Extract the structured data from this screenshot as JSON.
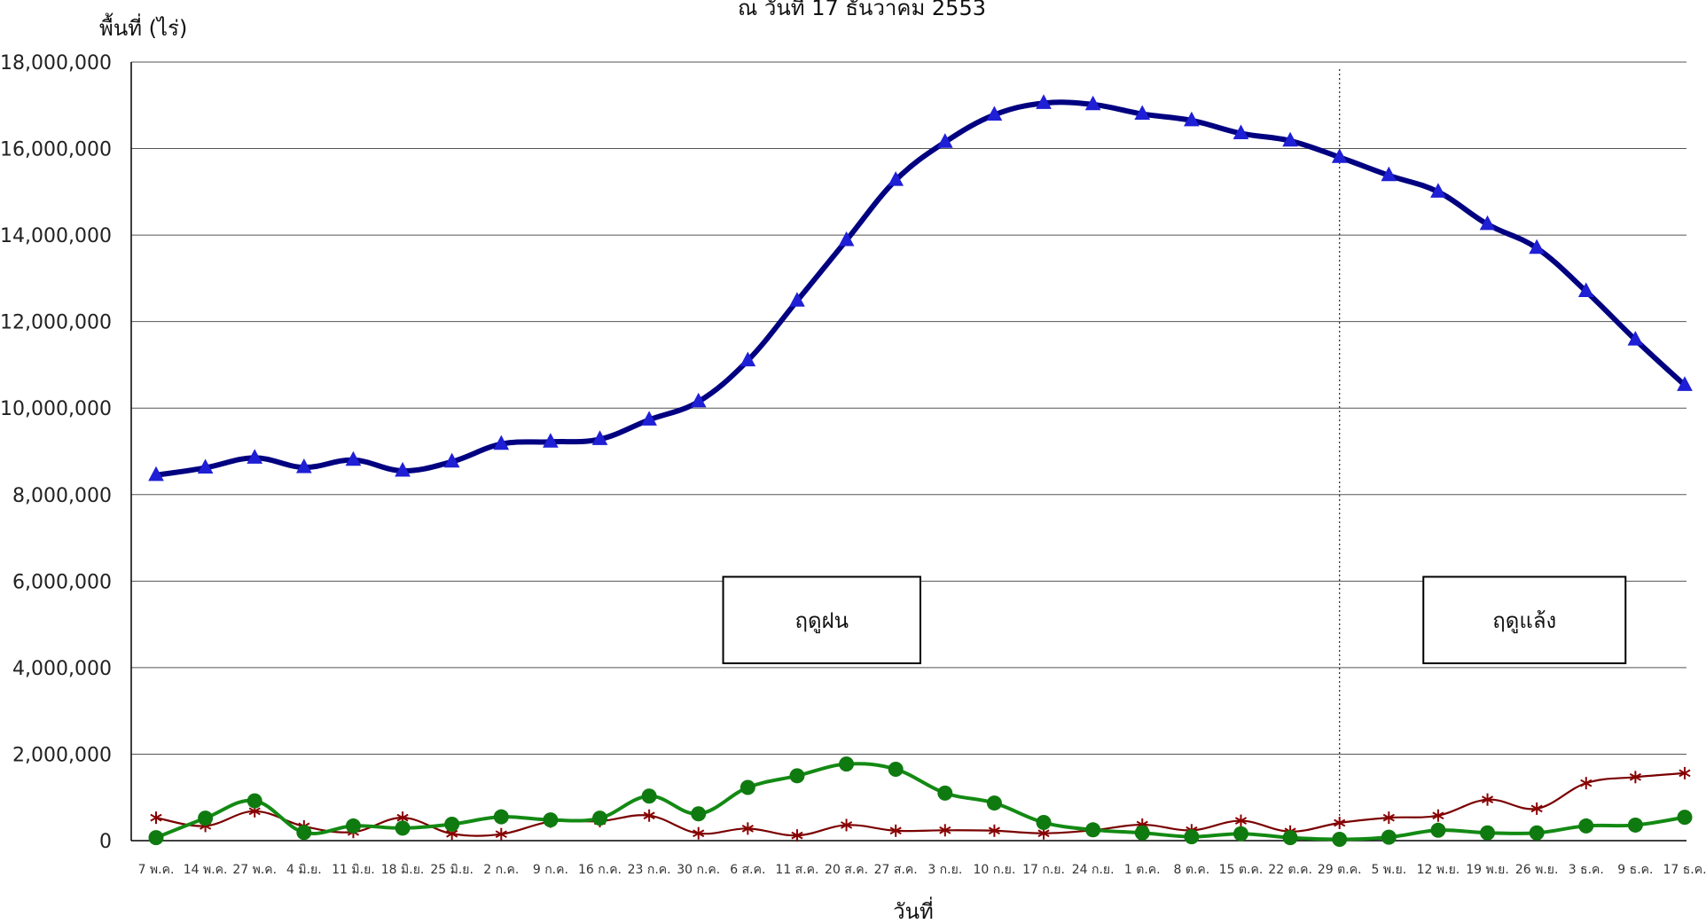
{
  "chart_data": {
    "type": "line",
    "title": "ณ วันที่ 17 ธันวาคม 2553",
    "ylabel": "พื้นที่ (ไร่)",
    "xlabel": "วันที่",
    "ylim": [
      0,
      18000000
    ],
    "yticks": [
      0,
      2000000,
      4000000,
      6000000,
      8000000,
      10000000,
      12000000,
      14000000,
      16000000,
      18000000
    ],
    "ytick_labels": [
      "0",
      "2,000,000",
      "4,000,000",
      "6,000,000",
      "8,000,000",
      "10,000,000",
      "12,000,000",
      "14,000,000",
      "16,000,000",
      "18,000,000"
    ],
    "grid": "horizontal",
    "categories": [
      "7 พ.ค.",
      "14 พ.ค.",
      "27 พ.ค.",
      "4 มิ.ย.",
      "11 มิ.ย.",
      "18 มิ.ย.",
      "25 มิ.ย.",
      "2 ก.ค.",
      "9 ก.ค.",
      "16 ก.ค.",
      "23 ก.ค.",
      "30 ก.ค.",
      "6 ส.ค.",
      "11 ส.ค.",
      "20 ส.ค.",
      "27 ส.ค.",
      "3 ก.ย.",
      "10 ก.ย.",
      "17 ก.ย.",
      "24 ก.ย.",
      "1 ต.ค.",
      "8 ต.ค.",
      "15 ต.ค.",
      "22 ต.ค.",
      "29 ต.ค.",
      "5 พ.ย.",
      "12 พ.ย.",
      "19 พ.ย.",
      "26 พ.ย.",
      "3 ธ.ค.",
      "9 ธ.ค.",
      "17 ธ.ค."
    ],
    "series": [
      {
        "marker": "triangle",
        "color": "#000080",
        "marker_color": "#1f1fd6",
        "values": [
          8450000,
          8620000,
          8850000,
          8630000,
          8800000,
          8550000,
          8760000,
          9170000,
          9220000,
          9280000,
          9730000,
          10150000,
          11100000,
          12480000,
          13880000,
          15270000,
          16150000,
          16780000,
          17050000,
          17020000,
          16800000,
          16650000,
          16350000,
          16180000,
          15800000,
          15380000,
          15000000,
          14250000,
          13700000,
          12700000,
          11580000,
          10530000
        ]
      },
      {
        "marker": "circle",
        "color": "#138a13",
        "marker_color": "#0f7a0f",
        "values": [
          70000,
          520000,
          920000,
          190000,
          340000,
          290000,
          380000,
          550000,
          480000,
          520000,
          1030000,
          620000,
          1230000,
          1500000,
          1770000,
          1650000,
          1100000,
          870000,
          420000,
          250000,
          180000,
          90000,
          160000,
          70000,
          30000,
          80000,
          240000,
          180000,
          180000,
          340000,
          360000,
          540000
        ]
      },
      {
        "marker": "star",
        "color": "#7a0000",
        "marker_color": "#8b0000",
        "values": [
          530000,
          340000,
          680000,
          330000,
          200000,
          530000,
          160000,
          150000,
          440000,
          450000,
          580000,
          170000,
          280000,
          120000,
          360000,
          230000,
          240000,
          230000,
          170000,
          240000,
          370000,
          240000,
          460000,
          210000,
          410000,
          530000,
          580000,
          950000,
          740000,
          1330000,
          1470000,
          1560000
        ]
      }
    ],
    "annotations": [
      {
        "text": "ฤดูฝน",
        "x_from": 11.5,
        "x_to": 15.5,
        "y_from": 4100000,
        "y_to": 6100000
      },
      {
        "text": "ฤดูแล้ง",
        "x_from": 25.7,
        "x_to": 29.8,
        "y_from": 4100000,
        "y_to": 6100000
      }
    ],
    "season_divider_category": "29 ต.ค."
  }
}
